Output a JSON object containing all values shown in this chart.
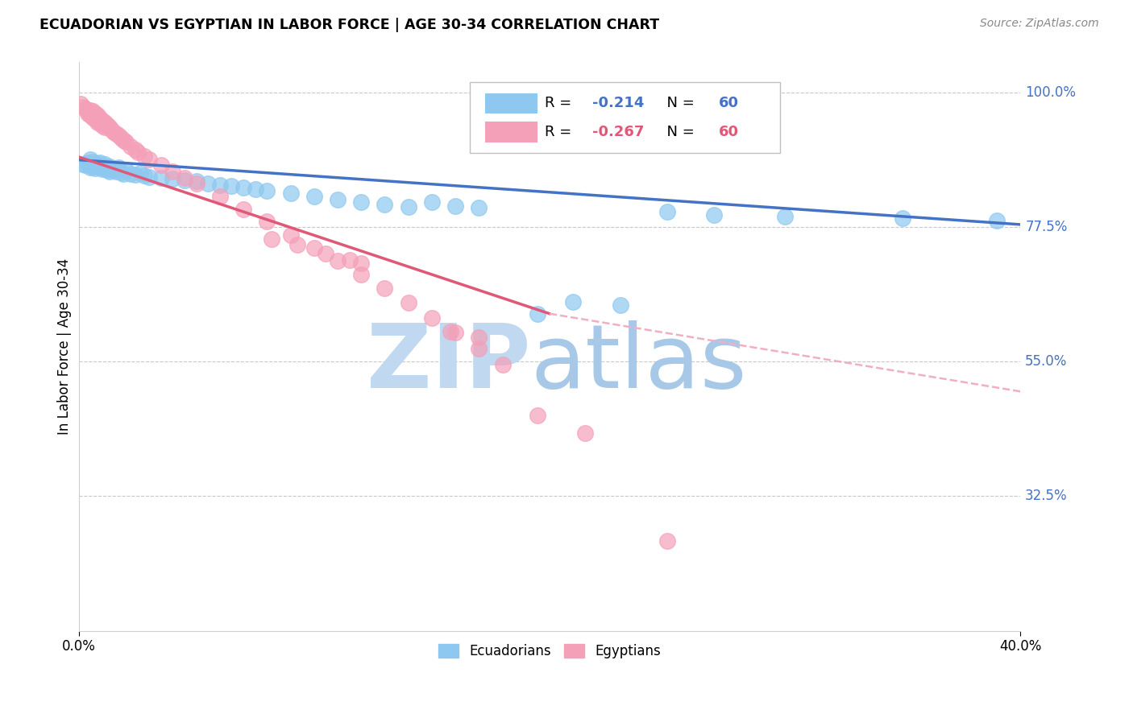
{
  "title": "ECUADORIAN VS EGYPTIAN IN LABOR FORCE | AGE 30-34 CORRELATION CHART",
  "source": "Source: ZipAtlas.com",
  "ylabel": "In Labor Force | Age 30-34",
  "ytick_labels": [
    "100.0%",
    "77.5%",
    "55.0%",
    "32.5%"
  ],
  "ytick_values": [
    1.0,
    0.775,
    0.55,
    0.325
  ],
  "xlim": [
    0.0,
    0.4
  ],
  "ylim": [
    0.1,
    1.05
  ],
  "legend_r_ecuadorian": "-0.214",
  "legend_n_ecuadorian": "60",
  "legend_r_egyptian": "-0.267",
  "legend_n_egyptian": "60",
  "ecuadorian_color": "#8EC8F0",
  "egyptian_color": "#F4A0B8",
  "trendline_ecuadorian_color": "#4472C4",
  "trendline_egyptian_color": "#E05878",
  "trendline_egyptian_dashed_color": "#F0B0C0",
  "watermark_zip_color": "#C0D8F0",
  "watermark_atlas_color": "#A8C8E8",
  "ecu_x": [
    0.002,
    0.003,
    0.004,
    0.005,
    0.005,
    0.006,
    0.006,
    0.007,
    0.007,
    0.008,
    0.008,
    0.009,
    0.009,
    0.01,
    0.01,
    0.011,
    0.011,
    0.012,
    0.012,
    0.013,
    0.013,
    0.014,
    0.015,
    0.016,
    0.017,
    0.018,
    0.019,
    0.02,
    0.022,
    0.024,
    0.026,
    0.028,
    0.03,
    0.035,
    0.04,
    0.045,
    0.05,
    0.055,
    0.06,
    0.065,
    0.07,
    0.075,
    0.08,
    0.09,
    0.1,
    0.11,
    0.12,
    0.13,
    0.14,
    0.15,
    0.16,
    0.17,
    0.195,
    0.21,
    0.23,
    0.25,
    0.27,
    0.3,
    0.35,
    0.39
  ],
  "ecu_y": [
    0.88,
    0.878,
    0.882,
    0.875,
    0.888,
    0.876,
    0.884,
    0.879,
    0.873,
    0.881,
    0.877,
    0.875,
    0.883,
    0.877,
    0.872,
    0.876,
    0.88,
    0.874,
    0.871,
    0.876,
    0.868,
    0.872,
    0.87,
    0.868,
    0.874,
    0.866,
    0.863,
    0.87,
    0.864,
    0.862,
    0.865,
    0.861,
    0.858,
    0.857,
    0.856,
    0.853,
    0.852,
    0.848,
    0.845,
    0.843,
    0.841,
    0.838,
    0.836,
    0.831,
    0.826,
    0.821,
    0.817,
    0.813,
    0.809,
    0.816,
    0.81,
    0.807,
    0.63,
    0.65,
    0.645,
    0.8,
    0.795,
    0.792,
    0.79,
    0.785
  ],
  "egy_x": [
    0.001,
    0.002,
    0.003,
    0.004,
    0.004,
    0.005,
    0.005,
    0.006,
    0.006,
    0.007,
    0.007,
    0.008,
    0.008,
    0.009,
    0.009,
    0.01,
    0.01,
    0.011,
    0.011,
    0.012,
    0.013,
    0.014,
    0.015,
    0.016,
    0.017,
    0.018,
    0.019,
    0.02,
    0.022,
    0.024,
    0.025,
    0.028,
    0.03,
    0.035,
    0.04,
    0.045,
    0.05,
    0.06,
    0.07,
    0.08,
    0.09,
    0.1,
    0.11,
    0.12,
    0.13,
    0.14,
    0.15,
    0.16,
    0.17,
    0.18,
    0.082,
    0.093,
    0.105,
    0.115,
    0.12,
    0.158,
    0.17,
    0.195,
    0.215,
    0.25
  ],
  "egy_y": [
    0.98,
    0.975,
    0.972,
    0.968,
    0.965,
    0.97,
    0.962,
    0.968,
    0.958,
    0.965,
    0.955,
    0.962,
    0.95,
    0.957,
    0.948,
    0.953,
    0.945,
    0.95,
    0.942,
    0.946,
    0.942,
    0.938,
    0.934,
    0.931,
    0.928,
    0.924,
    0.92,
    0.917,
    0.91,
    0.904,
    0.9,
    0.893,
    0.888,
    0.878,
    0.868,
    0.857,
    0.847,
    0.826,
    0.805,
    0.784,
    0.762,
    0.74,
    0.718,
    0.695,
    0.672,
    0.648,
    0.623,
    0.598,
    0.572,
    0.545,
    0.755,
    0.745,
    0.73,
    0.72,
    0.715,
    0.6,
    0.59,
    0.46,
    0.43,
    0.25
  ]
}
